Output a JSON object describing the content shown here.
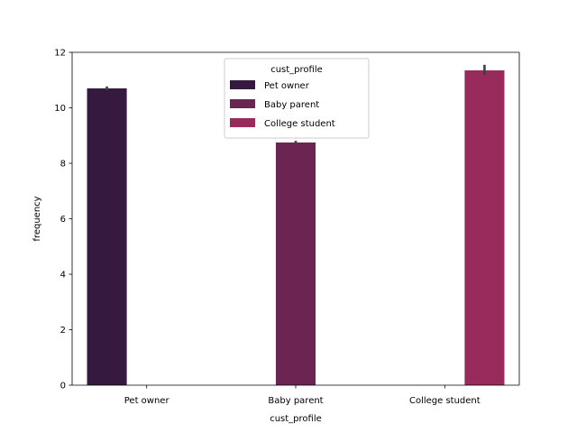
{
  "chart_data": {
    "type": "bar",
    "title": "",
    "xlabel": "cust_profile",
    "ylabel": "frequency",
    "categories": [
      "Pet owner",
      "Baby parent",
      "College student"
    ],
    "ylim": [
      0,
      12
    ],
    "yticks": [
      0,
      2,
      4,
      6,
      8,
      10,
      12
    ],
    "grid": false,
    "series": [
      {
        "name": "Pet owner",
        "color": "#35193e",
        "values": [
          10.7,
          null,
          null
        ],
        "err_low": [
          10.63,
          null,
          null
        ],
        "err_high": [
          10.77,
          null,
          null
        ]
      },
      {
        "name": "Baby parent",
        "color": "#6b2553",
        "values": [
          null,
          8.75,
          null
        ],
        "err_low": [
          null,
          8.7,
          null
        ],
        "err_high": [
          null,
          8.81,
          null
        ]
      },
      {
        "name": "College student",
        "color": "#982a5c",
        "values": [
          null,
          null,
          11.35
        ],
        "err_low": [
          null,
          null,
          11.18
        ],
        "err_high": [
          null,
          null,
          11.55
        ]
      }
    ],
    "legend": {
      "title": "cust_profile",
      "placement": "upper-center",
      "entries": [
        "Pet owner",
        "Baby parent",
        "College student"
      ]
    }
  }
}
